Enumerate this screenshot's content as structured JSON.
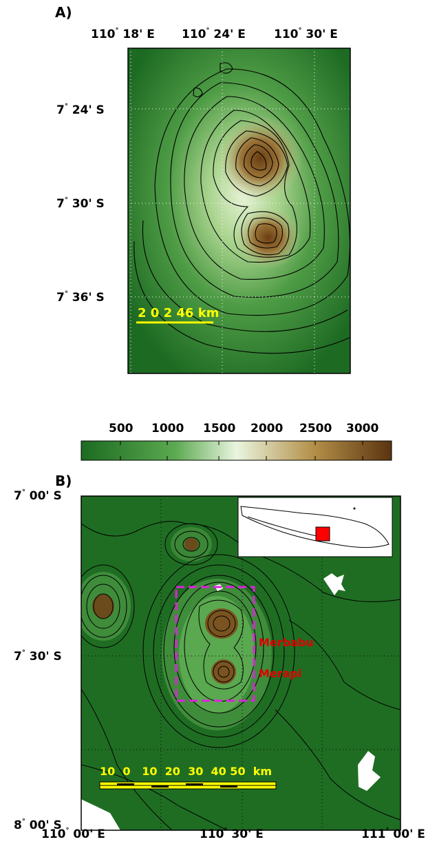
{
  "panel_a": {
    "label": "A)",
    "lon_ticks": [
      {
        "deg": "110",
        "min": "18' E"
      },
      {
        "deg": "110",
        "min": "24' E"
      },
      {
        "deg": "110",
        "min": "30' E"
      }
    ],
    "lat_ticks": [
      {
        "deg": "7",
        "min": "24' S"
      },
      {
        "deg": "7",
        "min": "30' S"
      },
      {
        "deg": "7",
        "min": "36' S"
      }
    ],
    "scale_bar": "2 0 2 46 km"
  },
  "colorbar": {
    "ticks": [
      "500",
      "1000",
      "1500",
      "2000",
      "2500",
      "3000"
    ],
    "colors": [
      "#1f6e23",
      "#5aa84f",
      "#e9f5df",
      "#b38f48",
      "#5b3410"
    ]
  },
  "panel_b": {
    "label": "B)",
    "lat_ticks": [
      {
        "deg": "7",
        "min": "00' S"
      },
      {
        "deg": "7",
        "min": "30' S"
      },
      {
        "deg": "8",
        "min": "00' S"
      }
    ],
    "lon_ticks": [
      {
        "deg": "110",
        "min": "00' E"
      },
      {
        "deg": "110",
        "min": "30' E"
      },
      {
        "deg": "111",
        "min": "00' E"
      }
    ],
    "volcano_labels": [
      "Merbabu",
      "Merapi"
    ],
    "scale_bar": "10  0   10  20  30  40 50  km",
    "accent_colors": {
      "labels": "#e00000",
      "study_box": "#e020e0",
      "scale": "#ffff00",
      "inset_marker": "#ff0000"
    }
  }
}
